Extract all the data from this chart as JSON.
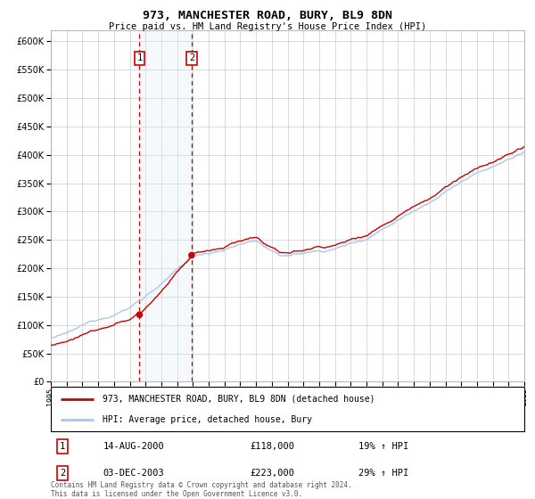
{
  "title": "973, MANCHESTER ROAD, BURY, BL9 8DN",
  "subtitle": "Price paid vs. HM Land Registry's House Price Index (HPI)",
  "legend_line1": "973, MANCHESTER ROAD, BURY, BL9 8DN (detached house)",
  "legend_line2": "HPI: Average price, detached house, Bury",
  "table_rows": [
    {
      "num": "1",
      "date": "14-AUG-2000",
      "price": "£118,000",
      "hpi": "19% ↑ HPI"
    },
    {
      "num": "2",
      "date": "03-DEC-2003",
      "price": "£223,000",
      "hpi": "29% ↑ HPI"
    }
  ],
  "footnote": "Contains HM Land Registry data © Crown copyright and database right 2024.\nThis data is licensed under the Open Government Licence v3.0.",
  "sale1_year": 2000.62,
  "sale1_price": 118000,
  "sale2_year": 2003.92,
  "sale2_price": 223000,
  "hpi_color": "#a8c8e8",
  "price_color": "#cc0000",
  "marker_color": "#cc0000",
  "shade_color": "#dce9f5",
  "vline_color": "#cc0000",
  "grid_color": "#cccccc",
  "bg_color": "#ffffff",
  "ylim_max": 620000,
  "ytick_step": 50000,
  "start_year": 1995,
  "end_year": 2025
}
